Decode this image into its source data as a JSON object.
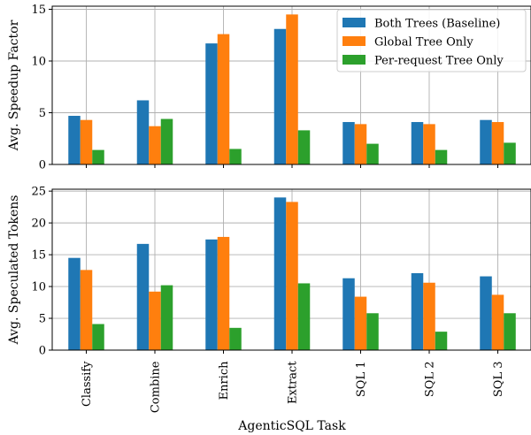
{
  "chart_data": {
    "type": "bar",
    "xlabel": "AgenticSQL Task",
    "categories": [
      "Classify",
      "Combine",
      "Enrich",
      "Extract",
      "SQL 1",
      "SQL 2",
      "SQL 3"
    ],
    "legend": {
      "placement": "upper-right",
      "panel": "top"
    },
    "series_styles": [
      {
        "name": "Both Trees (Baseline)",
        "color": "#1f77b4"
      },
      {
        "name": "Global Tree Only",
        "color": "#ff7f0e"
      },
      {
        "name": "Per-request Tree Only",
        "color": "#2ca02c"
      }
    ],
    "grid": true,
    "panels": [
      {
        "ylabel": "Avg. Speedup Factor",
        "ylim": [
          0,
          15.3
        ],
        "yticks": [
          0,
          5,
          10,
          15
        ],
        "show_x_ticklabels": false,
        "series": [
          {
            "name": "Both Trees (Baseline)",
            "values": [
              4.7,
              6.2,
              11.7,
              13.1,
              4.1,
              4.1,
              4.3
            ]
          },
          {
            "name": "Global Tree Only",
            "values": [
              4.3,
              3.7,
              12.6,
              14.5,
              3.9,
              3.9,
              4.1
            ]
          },
          {
            "name": "Per-request Tree Only",
            "values": [
              1.4,
              4.4,
              1.5,
              3.3,
              2.0,
              1.4,
              2.1
            ]
          }
        ]
      },
      {
        "ylabel": "Avg. Speculated Tokens",
        "ylim": [
          0,
          25.3
        ],
        "yticks": [
          0,
          5,
          10,
          15,
          20,
          25
        ],
        "show_x_ticklabels": true,
        "series": [
          {
            "name": "Both Trees (Baseline)",
            "values": [
              14.5,
              16.7,
              17.4,
              24.0,
              11.3,
              12.1,
              11.6
            ]
          },
          {
            "name": "Global Tree Only",
            "values": [
              12.6,
              9.2,
              17.8,
              23.3,
              8.4,
              10.6,
              8.7
            ]
          },
          {
            "name": "Per-request Tree Only",
            "values": [
              4.1,
              10.2,
              3.5,
              10.5,
              5.8,
              2.9,
              5.8
            ]
          }
        ]
      }
    ]
  }
}
